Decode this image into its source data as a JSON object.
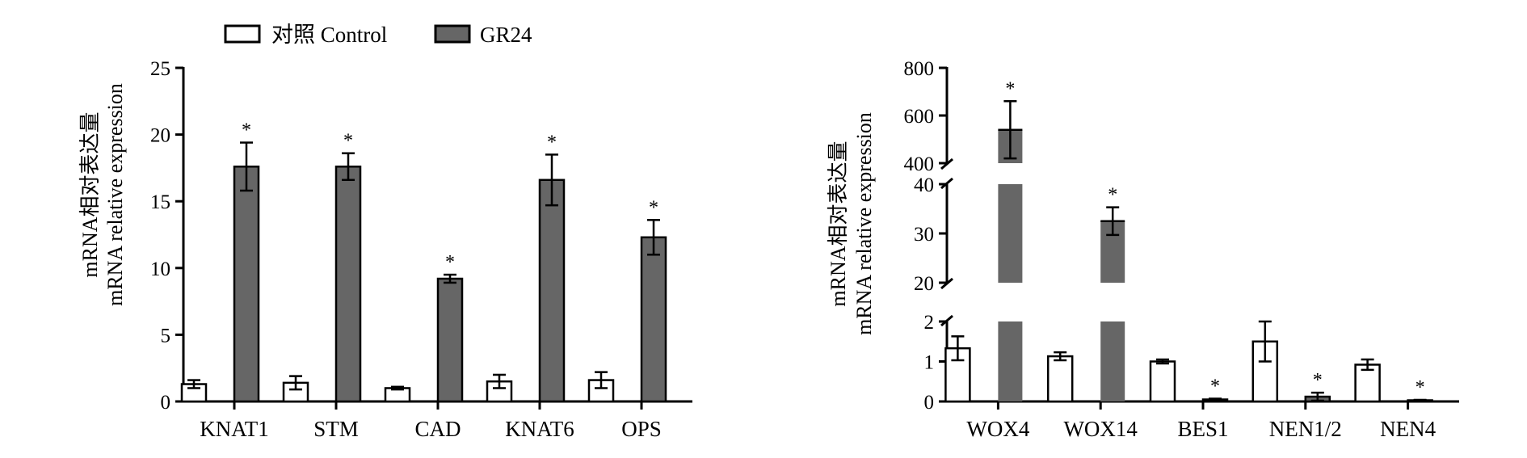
{
  "colors": {
    "control_fill": "#ffffff",
    "gr24_fill": "#666666",
    "stroke": "#000000"
  },
  "legend": {
    "position": "top-left",
    "items": [
      {
        "label": "对照 Control",
        "color": "#ffffff"
      },
      {
        "label": "GR24",
        "color": "#666666"
      }
    ]
  },
  "chart_data": [
    {
      "type": "bar",
      "title": "",
      "xlabel": "",
      "ylabel_lines": [
        "mRNA相对表达量",
        "mRNA relative expression"
      ],
      "ylim": [
        0,
        25
      ],
      "yticks": [
        0,
        5,
        10,
        15,
        20,
        25
      ],
      "categories": [
        "KNAT1",
        "STM",
        "CAD",
        "KNAT6",
        "OPS"
      ],
      "series": [
        {
          "name": "对照 Control",
          "values": [
            1.3,
            1.4,
            1.0,
            1.5,
            1.6
          ],
          "errors": [
            0.3,
            0.5,
            0.1,
            0.5,
            0.6
          ]
        },
        {
          "name": "GR24",
          "values": [
            17.6,
            17.6,
            9.2,
            16.6,
            12.3
          ],
          "errors": [
            1.8,
            1.0,
            0.3,
            1.9,
            1.3
          ]
        }
      ],
      "significance": [
        {
          "category": "KNAT1",
          "series": "GR24",
          "label": "*"
        },
        {
          "category": "STM",
          "series": "GR24",
          "label": "*"
        },
        {
          "category": "CAD",
          "series": "GR24",
          "label": "*"
        },
        {
          "category": "KNAT6",
          "series": "GR24",
          "label": "*"
        },
        {
          "category": "OPS",
          "series": "GR24",
          "label": "*"
        }
      ]
    },
    {
      "type": "bar",
      "title": "",
      "xlabel": "",
      "ylabel_lines": [
        "mRNA相对表达量",
        "mRNA relative expression"
      ],
      "broken_axis": true,
      "segments": [
        {
          "range": [
            0,
            2
          ],
          "ticks": [
            0,
            1,
            2
          ]
        },
        {
          "range": [
            20,
            40
          ],
          "ticks": [
            20,
            30,
            40
          ]
        },
        {
          "range": [
            400,
            800
          ],
          "ticks": [
            400,
            600,
            800
          ]
        }
      ],
      "categories": [
        "WOX4",
        "WOX14",
        "BES1",
        "NEN1/2",
        "NEN4"
      ],
      "series": [
        {
          "name": "对照 Control",
          "values": [
            1.33,
            1.13,
            1.0,
            1.5,
            0.92
          ],
          "errors": [
            0.3,
            0.1,
            0.05,
            0.5,
            0.13
          ]
        },
        {
          "name": "GR24",
          "values": [
            540,
            32.5,
            0.05,
            0.12,
            0.03
          ],
          "errors": [
            120,
            2.8,
            0.02,
            0.1,
            0.01
          ]
        }
      ],
      "significance": [
        {
          "category": "WOX4",
          "series": "GR24",
          "label": "*"
        },
        {
          "category": "WOX14",
          "series": "GR24",
          "label": "*"
        },
        {
          "category": "BES1",
          "series": "GR24",
          "label": "*"
        },
        {
          "category": "NEN1/2",
          "series": "GR24",
          "label": "*"
        },
        {
          "category": "NEN4",
          "series": "GR24",
          "label": "*"
        }
      ]
    }
  ]
}
